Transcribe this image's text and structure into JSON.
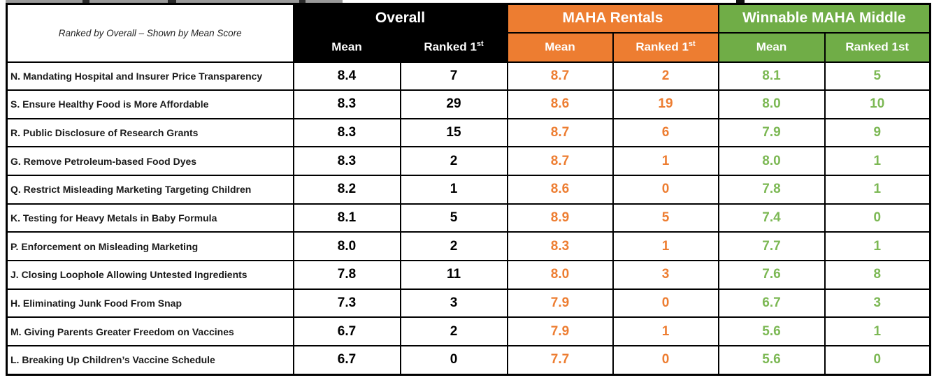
{
  "colors": {
    "orange": "#ED7D31",
    "green": "#70AD47",
    "green_text": "#7CB854",
    "black": "#000000"
  },
  "chart_data": {
    "type": "table",
    "title": "Ranked by Overall – Shown by Mean Score",
    "column_groups": [
      {
        "label": "Overall"
      },
      {
        "label": "MAHA Rentals"
      },
      {
        "label": "Winnable MAHA Middle"
      }
    ],
    "subcolumns": [
      {
        "text": "Mean",
        "sup": ""
      },
      {
        "text": "Ranked 1",
        "sup": "st"
      },
      {
        "text": "Mean",
        "sup": ""
      },
      {
        "text": "Ranked 1",
        "sup": "st"
      },
      {
        "text": "Mean",
        "sup": ""
      },
      {
        "text": "Ranked 1st",
        "sup": ""
      }
    ],
    "rows": [
      {
        "label": "N. Mandating Hospital and Insurer Price Transparency",
        "values": [
          "8.4",
          "7",
          "8.7",
          "2",
          "8.1",
          "5"
        ]
      },
      {
        "label": "S. Ensure Healthy Food is More Affordable",
        "values": [
          "8.3",
          "29",
          "8.6",
          "19",
          "8.0",
          "10"
        ]
      },
      {
        "label": "R. Public Disclosure of Research Grants",
        "values": [
          "8.3",
          "15",
          "8.7",
          "6",
          "7.9",
          "9"
        ]
      },
      {
        "label": "G. Remove Petroleum-based Food Dyes",
        "values": [
          "8.3",
          "2",
          "8.7",
          "1",
          "8.0",
          "1"
        ]
      },
      {
        "label": "Q. Restrict Misleading Marketing Targeting Children",
        "values": [
          "8.2",
          "1",
          "8.6",
          "0",
          "7.8",
          "1"
        ]
      },
      {
        "label": "K. Testing for Heavy Metals in Baby Formula",
        "values": [
          "8.1",
          "5",
          "8.9",
          "5",
          "7.4",
          "0"
        ]
      },
      {
        "label": "P. Enforcement on Misleading Marketing",
        "values": [
          "8.0",
          "2",
          "8.3",
          "1",
          "7.7",
          "1"
        ]
      },
      {
        "label": "J. Closing Loophole Allowing Untested Ingredients",
        "values": [
          "7.8",
          "11",
          "8.0",
          "3",
          "7.6",
          "8"
        ]
      },
      {
        "label": "H. Eliminating Junk Food From Snap",
        "values": [
          "7.3",
          "3",
          "7.9",
          "0",
          "6.7",
          "3"
        ]
      },
      {
        "label": "M. Giving Parents Greater Freedom on Vaccines",
        "values": [
          "6.7",
          "2",
          "7.9",
          "1",
          "5.6",
          "1"
        ]
      },
      {
        "label": "L. Breaking Up Children’s Vaccine Schedule",
        "values": [
          "6.7",
          "0",
          "7.7",
          "0",
          "5.6",
          "0"
        ]
      }
    ]
  }
}
